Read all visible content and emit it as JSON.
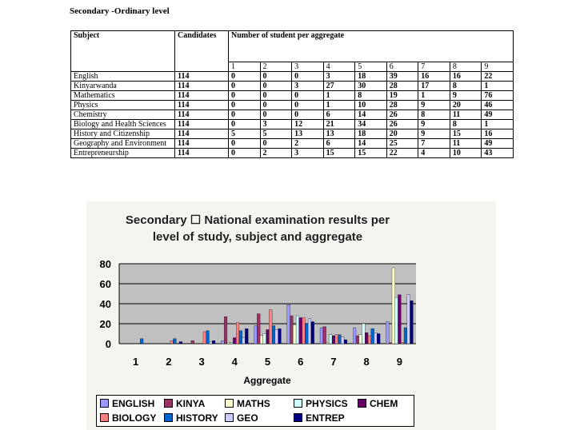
{
  "heading": "Secondary -Ordinary level",
  "table": {
    "col_subject": "Subject",
    "col_candidates": "Candidates",
    "col_group": "Number of student per aggregate",
    "aggregates": [
      "1",
      "2",
      "3",
      "4",
      "5",
      "6",
      "7",
      "8",
      "9"
    ],
    "rows": [
      {
        "subject": "English",
        "candidates": "114",
        "values": [
          "0",
          "0",
          "0",
          "3",
          "18",
          "39",
          "16",
          "16",
          "22"
        ]
      },
      {
        "subject": "Kinyarwanda",
        "candidates": "114",
        "values": [
          "0",
          "0",
          "3",
          "27",
          "30",
          "28",
          "17",
          "8",
          "1"
        ]
      },
      {
        "subject": "Mathematics",
        "candidates": "114",
        "values": [
          "0",
          "0",
          "0",
          "1",
          "8",
          "19",
          "1",
          "9",
          "76"
        ]
      },
      {
        "subject": "Physics",
        "candidates": "114",
        "values": [
          "0",
          "0",
          "0",
          "1",
          "10",
          "28",
          "9",
          "20",
          "46"
        ]
      },
      {
        "subject": "Chemistry",
        "candidates": "114",
        "values": [
          "0",
          "0",
          "0",
          "6",
          "14",
          "26",
          "8",
          "11",
          "49"
        ]
      },
      {
        "subject": "Biology and Health Sciences",
        "candidates": "114",
        "values": [
          "0",
          "3",
          "12",
          "21",
          "34",
          "26",
          "9",
          "8",
          "1"
        ]
      },
      {
        "subject": "History and Citizenship",
        "candidates": "114",
        "values": [
          "5",
          "5",
          "13",
          "13",
          "18",
          "20",
          "9",
          "15",
          "16"
        ]
      },
      {
        "subject": "Geography and Environment",
        "candidates": "114",
        "values": [
          "0",
          "0",
          "2",
          "6",
          "14",
          "25",
          "7",
          "11",
          "49"
        ]
      },
      {
        "subject": "Entrepreneurship",
        "candidates": "114",
        "values": [
          "0",
          "2",
          "3",
          "15",
          "15",
          "22",
          "4",
          "10",
          "43"
        ]
      }
    ]
  },
  "chart_data": {
    "type": "bar",
    "title_lines": [
      "Secondary ☐ National examination results per",
      "level of study, subject and aggregate"
    ],
    "xlabel": "Aggregate",
    "ylabel": "",
    "categories": [
      "1",
      "2",
      "3",
      "4",
      "5",
      "6",
      "7",
      "8",
      "9"
    ],
    "ylim": [
      0,
      80
    ],
    "yticks": [
      0,
      20,
      40,
      60,
      80
    ],
    "grid": true,
    "legend_position": "bottom",
    "series": [
      {
        "name": "ENGLISH",
        "color": "#9999ff",
        "values": [
          0,
          0,
          0,
          3,
          18,
          39,
          16,
          16,
          22
        ]
      },
      {
        "name": "KINYA",
        "color": "#993366",
        "values": [
          0,
          0,
          3,
          27,
          30,
          28,
          17,
          8,
          1
        ]
      },
      {
        "name": "MATHS",
        "color": "#ffffcc",
        "values": [
          0,
          0,
          0,
          1,
          8,
          19,
          1,
          9,
          76
        ]
      },
      {
        "name": "PHYSICS",
        "color": "#ccffff",
        "values": [
          0,
          0,
          0,
          1,
          10,
          28,
          9,
          20,
          46
        ]
      },
      {
        "name": "CHEM",
        "color": "#660066",
        "values": [
          0,
          0,
          0,
          6,
          14,
          26,
          8,
          11,
          49
        ]
      },
      {
        "name": "BIOLOGY",
        "color": "#ff8080",
        "values": [
          0,
          3,
          12,
          21,
          34,
          26,
          9,
          8,
          1
        ]
      },
      {
        "name": "HISTORY",
        "color": "#0066cc",
        "values": [
          5,
          5,
          13,
          13,
          18,
          20,
          9,
          15,
          16
        ]
      },
      {
        "name": "GEO",
        "color": "#ccccff",
        "values": [
          0,
          0,
          2,
          6,
          14,
          25,
          7,
          11,
          49
        ]
      },
      {
        "name": "ENTREP",
        "color": "#000080",
        "values": [
          0,
          2,
          3,
          15,
          15,
          22,
          4,
          10,
          43
        ]
      }
    ]
  }
}
